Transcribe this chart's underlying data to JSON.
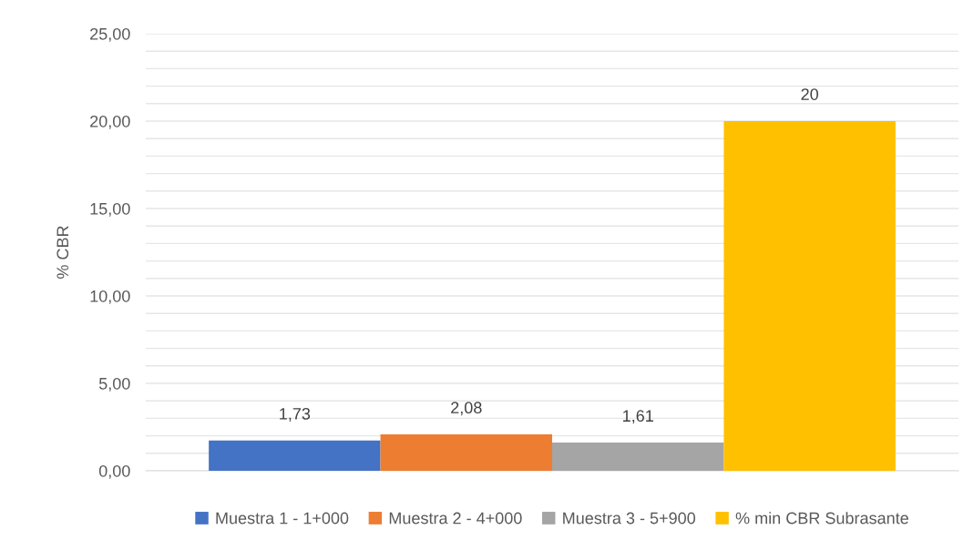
{
  "chart_data": {
    "type": "bar",
    "ylabel": "% CBR",
    "categories": [
      null
    ],
    "series": [
      {
        "name": "Muestra 1 - 1+000",
        "color": "#4472c4",
        "values": [
          1.73
        ],
        "value_labels": [
          "1,73"
        ]
      },
      {
        "name": "Muestra 2 - 4+000",
        "color": "#ed7d31",
        "values": [
          2.08
        ],
        "value_labels": [
          "2,08"
        ]
      },
      {
        "name": "Muestra 3 - 5+900",
        "color": "#a5a5a5",
        "values": [
          1.61
        ],
        "value_labels": [
          "1,61"
        ]
      },
      {
        "name": "% min CBR Subrasante",
        "color": "#ffc000",
        "values": [
          20
        ],
        "value_labels": [
          "20"
        ]
      }
    ],
    "ylim": [
      0,
      25
    ],
    "yticks": [
      {
        "value": 0,
        "label": "0,00"
      },
      {
        "value": 1,
        "label": null
      },
      {
        "value": 2,
        "label": null
      },
      {
        "value": 3,
        "label": null
      },
      {
        "value": 4,
        "label": null
      },
      {
        "value": 5,
        "label": "5,00"
      },
      {
        "value": 6,
        "label": null
      },
      {
        "value": 7,
        "label": null
      },
      {
        "value": 8,
        "label": null
      },
      {
        "value": 9,
        "label": null
      },
      {
        "value": 10,
        "label": "10,00"
      },
      {
        "value": 11,
        "label": null
      },
      {
        "value": 12,
        "label": null
      },
      {
        "value": 13,
        "label": null
      },
      {
        "value": 14,
        "label": null
      },
      {
        "value": 15,
        "label": "15,00"
      },
      {
        "value": 16,
        "label": null
      },
      {
        "value": 17,
        "label": null
      },
      {
        "value": 18,
        "label": null
      },
      {
        "value": 19,
        "label": null
      },
      {
        "value": 20,
        "label": "20,00"
      },
      {
        "value": 21,
        "label": null
      },
      {
        "value": 22,
        "label": null
      },
      {
        "value": 23,
        "label": null
      },
      {
        "value": 24,
        "label": null
      },
      {
        "value": 25,
        "label": "25,00"
      }
    ],
    "grid": "y",
    "legend": "bottom"
  }
}
